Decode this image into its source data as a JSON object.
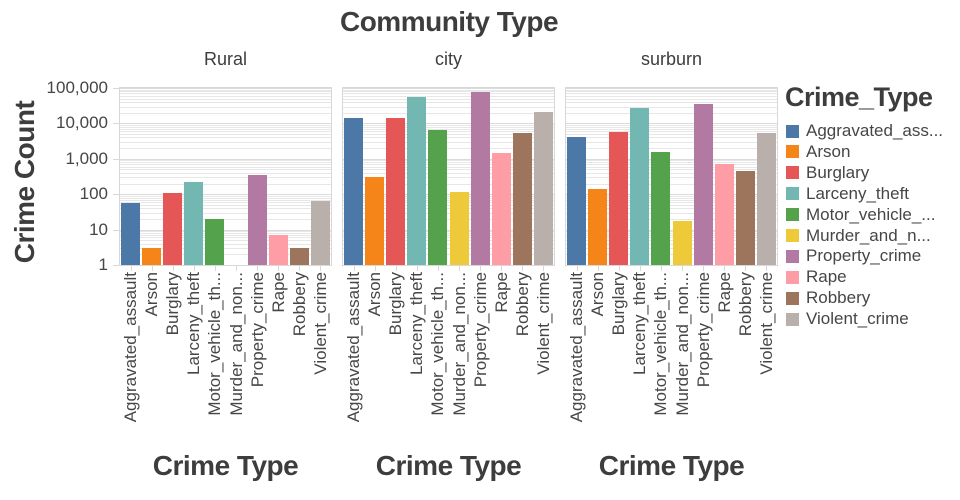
{
  "chart_data": {
    "type": "bar",
    "title": "Community Type",
    "xlabel": "Crime Type",
    "ylabel": "Crime Count",
    "y_scale": "log",
    "ylim": [
      1,
      100000
    ],
    "grid": true,
    "legend_position": "right",
    "y_ticks": [
      {
        "value": 1,
        "label": "1"
      },
      {
        "value": 10,
        "label": "10"
      },
      {
        "value": 100,
        "label": "100"
      },
      {
        "value": 1000,
        "label": "1,000"
      },
      {
        "value": 10000,
        "label": "10,000"
      },
      {
        "value": 100000,
        "label": "100,000"
      }
    ],
    "categories": [
      "Aggravated_assault",
      "Arson",
      "Burglary",
      "Larceny_theft",
      "Motor_vehicle_th...",
      "Murder_and_non...",
      "Property_crime",
      "Rape",
      "Robbery",
      "Violent_crime"
    ],
    "series_colors": [
      "#4c78a8",
      "#f58518",
      "#e45756",
      "#72b7b2",
      "#54a24b",
      "#eeca3b",
      "#b279a2",
      "#ff9da6",
      "#9d755d",
      "#bab0ab"
    ],
    "facets": [
      {
        "label": "Rural",
        "values": [
          55,
          3,
          105,
          215,
          20,
          0,
          340,
          7,
          3,
          65
        ]
      },
      {
        "label": "city",
        "values": [
          14000,
          300,
          14500,
          57000,
          6600,
          118,
          79000,
          1450,
          5300,
          21000
        ]
      },
      {
        "label": "surburn",
        "values": [
          4100,
          140,
          5900,
          27000,
          1600,
          17,
          35500,
          700,
          450,
          5500
        ]
      }
    ],
    "legend": {
      "title": "Crime_Type",
      "items": [
        "Aggravated_ass...",
        "Arson",
        "Burglary",
        "Larceny_theft",
        "Motor_vehicle_...",
        "Murder_and_n...",
        "Property_crime",
        "Rape",
        "Robbery",
        "Violent_crime"
      ]
    }
  }
}
